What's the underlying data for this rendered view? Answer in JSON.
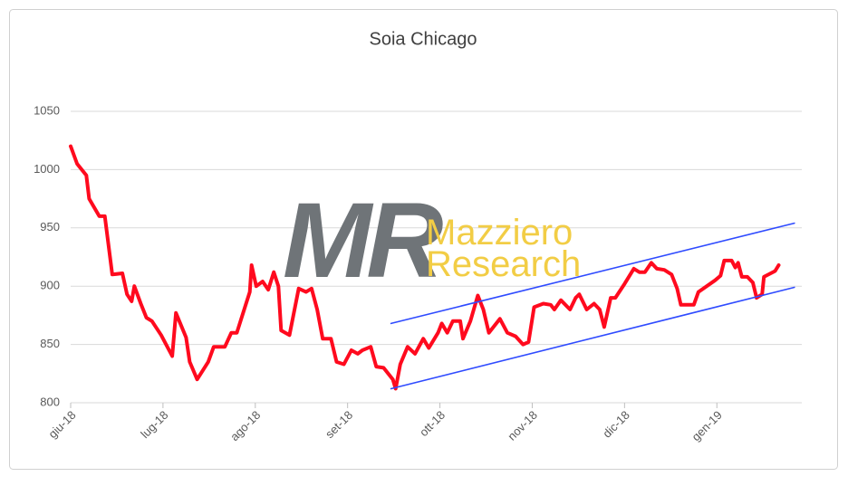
{
  "chart_data": {
    "type": "line",
    "title": "Soia Chicago",
    "watermark": {
      "mark": "MR",
      "lines": [
        "Mazziero",
        "Research"
      ]
    },
    "xlim": [
      0,
      7.92
    ],
    "xticks": [
      {
        "value": 0,
        "label": "giu-18"
      },
      {
        "value": 1,
        "label": "lug-18"
      },
      {
        "value": 2,
        "label": "ago-18"
      },
      {
        "value": 3,
        "label": "set-18"
      },
      {
        "value": 4,
        "label": "ott-18"
      },
      {
        "value": 5,
        "label": "nov-18"
      },
      {
        "value": 6,
        "label": "dic-18"
      },
      {
        "value": 7,
        "label": "gen-19"
      }
    ],
    "ylim": [
      800,
      1075
    ],
    "yticks": [
      800,
      850,
      900,
      950,
      1000,
      1050
    ],
    "grid": true,
    "series": [
      {
        "color": "#ff0a1e",
        "x": [
          0,
          0.07,
          0.17,
          0.2,
          0.31,
          0.37,
          0.45,
          0.56,
          0.61,
          0.66,
          0.69,
          0.76,
          0.82,
          0.88,
          0.98,
          1.1,
          1.14,
          1.25,
          1.29,
          1.37,
          1.49,
          1.55,
          1.67,
          1.74,
          1.8,
          1.9,
          1.94,
          1.96,
          2.01,
          2.08,
          2.14,
          2.2,
          2.25,
          2.28,
          2.37,
          2.47,
          2.55,
          2.61,
          2.67,
          2.73,
          2.82,
          2.88,
          2.96,
          3.04,
          3.11,
          3.16,
          3.25,
          3.31,
          3.39,
          3.49,
          3.52,
          3.57,
          3.65,
          3.73,
          3.82,
          3.88,
          3.98,
          4.02,
          4.08,
          4.14,
          4.22,
          4.25,
          4.33,
          4.41,
          4.47,
          4.53,
          4.58,
          4.65,
          4.73,
          4.82,
          4.9,
          4.96,
          5.02,
          5.12,
          5.2,
          5.24,
          5.31,
          5.41,
          5.47,
          5.51,
          5.59,
          5.67,
          5.73,
          5.78,
          5.85,
          5.9,
          6.0,
          6.1,
          6.16,
          6.22,
          6.29,
          6.35,
          6.43,
          6.51,
          6.57,
          6.61,
          6.75,
          6.8,
          6.98,
          7.04,
          7.08,
          7.16,
          7.2,
          7.23,
          7.27,
          7.33,
          7.39,
          7.43,
          7.49,
          7.51,
          7.63,
          7.67
        ],
        "values": [
          1020,
          1005,
          995,
          975,
          960,
          960,
          910,
          911,
          893,
          887,
          900,
          885,
          873,
          870,
          858,
          840,
          877,
          856,
          835,
          820,
          835,
          848,
          848,
          860,
          860,
          885,
          895,
          918,
          900,
          904,
          897,
          912,
          900,
          862,
          858,
          898,
          895,
          898,
          880,
          855,
          855,
          835,
          833,
          845,
          842,
          845,
          848,
          831,
          830,
          820,
          812,
          833,
          848,
          842,
          855,
          847,
          860,
          868,
          860,
          870,
          870,
          855,
          870,
          892,
          880,
          860,
          865,
          872,
          860,
          857,
          850,
          852,
          882,
          885,
          884,
          880,
          888,
          880,
          890,
          893,
          880,
          885,
          880,
          865,
          890,
          890,
          902,
          915,
          912,
          912,
          920,
          915,
          914,
          910,
          898,
          884,
          884,
          895,
          905,
          909,
          922,
          922,
          916,
          920,
          908,
          908,
          903,
          890,
          893,
          908,
          913,
          918
        ]
      },
      {
        "color": "#2f4bff",
        "x": [
          3.47,
          7.84
        ],
        "values": [
          868,
          954
        ]
      },
      {
        "color": "#2f4bff",
        "x": [
          3.47,
          7.84
        ],
        "values": [
          812,
          899
        ]
      }
    ]
  }
}
